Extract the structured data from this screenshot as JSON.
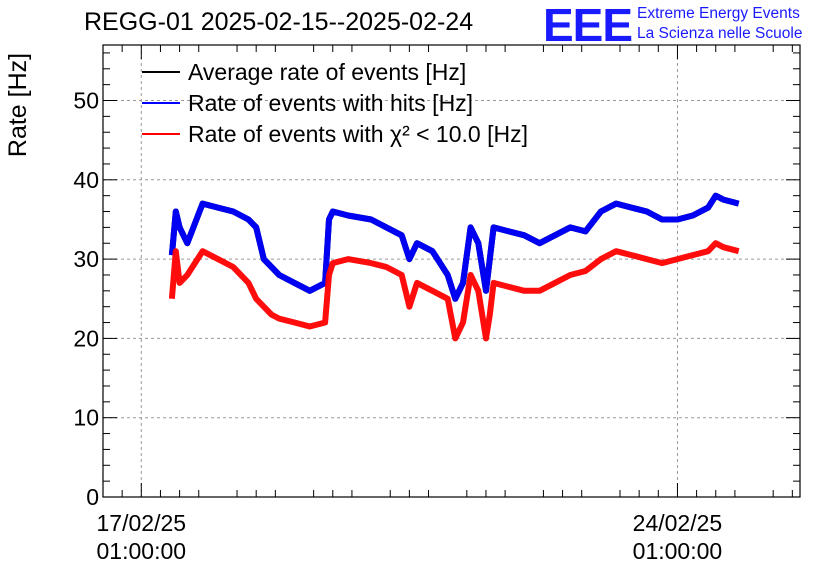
{
  "header": {
    "title": "REGG-01 2025-02-15--2025-02-24",
    "logo_mark": "EEE",
    "logo_line1": "Extreme Energy Events",
    "logo_line2": "La Scienza nelle Scuole"
  },
  "chart_data": {
    "type": "line",
    "title": "REGG-01 2025-02-15--2025-02-24",
    "ylabel": "Rate [Hz]",
    "xlabel": "",
    "ylim": [
      0,
      57
    ],
    "yticks": [
      0,
      10,
      20,
      30,
      40,
      50
    ],
    "x_tick_labels": [
      {
        "date": "17/02/25",
        "time": "01:00:00",
        "day": 0
      },
      {
        "date": "24/02/25",
        "time": "01:00:00",
        "day": 7
      }
    ],
    "xlim_days": [
      -0.5,
      8.6
    ],
    "grid": true,
    "legend_position": "top-left",
    "legend": [
      {
        "label": "Average rate of events [Hz]",
        "color": "#000000"
      },
      {
        "label": "Rate of events with hits [Hz]",
        "color": "#0000ff"
      },
      {
        "label": "Rate of events with χ² < 10.0 [Hz]",
        "color": "#ff0000"
      }
    ],
    "x_days": [
      0.4,
      0.45,
      0.5,
      0.6,
      0.8,
      1.0,
      1.2,
      1.4,
      1.5,
      1.6,
      1.7,
      1.8,
      2.0,
      2.2,
      2.4,
      2.45,
      2.5,
      2.7,
      3.0,
      3.2,
      3.4,
      3.5,
      3.6,
      3.8,
      4.0,
      4.1,
      4.2,
      4.3,
      4.4,
      4.5,
      4.55,
      4.6,
      4.8,
      5.0,
      5.2,
      5.4,
      5.6,
      5.8,
      6.0,
      6.2,
      6.4,
      6.6,
      6.8,
      7.0,
      7.2,
      7.4,
      7.5,
      7.6,
      7.8
    ],
    "series": [
      {
        "name": "Rate of events with hits [Hz]",
        "color": "#0000ff",
        "values": [
          30.5,
          36,
          34,
          32,
          37,
          36.5,
          36,
          35,
          34,
          30,
          29,
          28,
          27,
          26,
          27,
          35,
          36,
          35.5,
          35,
          34,
          33,
          30,
          32,
          31,
          28,
          25,
          27,
          34,
          32,
          26,
          30,
          34,
          33.5,
          33,
          32,
          33,
          34,
          33.5,
          36,
          37,
          36.5,
          36,
          35,
          35,
          35.5,
          36.5,
          38,
          37.5,
          37
        ]
      },
      {
        "name": "Rate of events with χ² < 10.0 [Hz]",
        "color": "#ff0000",
        "values": [
          25,
          31,
          27,
          28,
          31,
          30,
          29,
          27,
          25,
          24,
          23,
          22.5,
          22,
          21.5,
          22,
          28,
          29.5,
          30,
          29.5,
          29,
          28,
          24,
          27,
          26,
          25,
          20,
          22,
          28,
          26,
          20,
          23,
          27,
          26.5,
          26,
          26,
          27,
          28,
          28.5,
          30,
          31,
          30.5,
          30,
          29.5,
          30,
          30.5,
          31,
          32,
          31.5,
          31
        ]
      },
      {
        "name": "Average rate of events [Hz]",
        "color": "#000000",
        "values": [
          30.5,
          36,
          34,
          32,
          37,
          36.5,
          36,
          35,
          34,
          30,
          29,
          28,
          27,
          26,
          27,
          35,
          36,
          35.5,
          35,
          34,
          33,
          30,
          32,
          31,
          28,
          25,
          27,
          34,
          32,
          26,
          30,
          34,
          33.5,
          33,
          32,
          33,
          34,
          33.5,
          36,
          37,
          36.5,
          36,
          35,
          35,
          35.5,
          36.5,
          38,
          37.5,
          37
        ]
      }
    ]
  }
}
